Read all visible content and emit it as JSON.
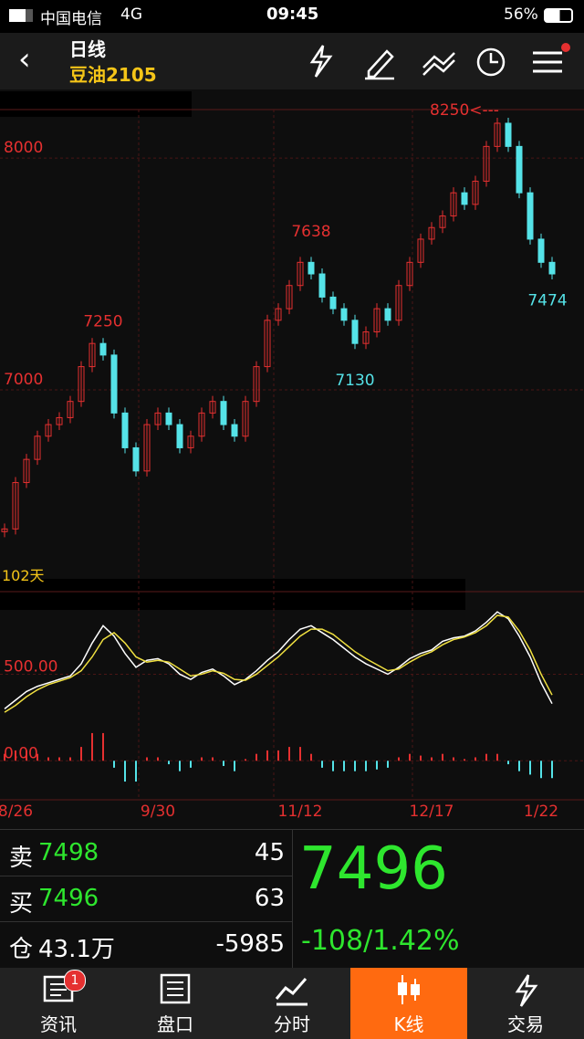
{
  "status_bar": {
    "carrier": "中国电信",
    "network": "4G",
    "time": "09:45",
    "battery": "56%"
  },
  "header": {
    "title": "日线",
    "subtitle": "豆油2105"
  },
  "chart_data": [
    {
      "type": "candlestick",
      "categories": [
        null,
        "8/26",
        null,
        null,
        null,
        null,
        null,
        null,
        null,
        null,
        null,
        null,
        null,
        null,
        "9/30",
        null,
        null,
        null,
        null,
        null,
        null,
        null,
        null,
        null,
        null,
        null,
        null,
        "11/12",
        null,
        null,
        null,
        null,
        null,
        null,
        null,
        null,
        null,
        null,
        null,
        "12/17",
        null,
        null,
        null,
        null,
        null,
        null,
        null,
        null,
        null,
        "1/22",
        null
      ],
      "series": [
        {
          "name": "close",
          "up_color": "#e53030",
          "down_color": "#55e3e8",
          "values": [
            6400,
            6600,
            6700,
            6800,
            6850,
            6880,
            6950,
            7100,
            7200,
            7150,
            6900,
            6750,
            6650,
            6850,
            6900,
            6850,
            6750,
            6800,
            6900,
            6950,
            6850,
            6800,
            6950,
            7100,
            7300,
            7350,
            7450,
            7550,
            7500,
            7400,
            7350,
            7300,
            7200,
            7250,
            7350,
            7300,
            7450,
            7550,
            7650,
            7700,
            7750,
            7850,
            7800,
            7900,
            8050,
            8150,
            8050,
            7850,
            7650,
            7550,
            7500
          ]
        }
      ],
      "ylim": [
        6161,
        8209
      ],
      "yticks": [
        7000,
        8000
      ],
      "grid": true,
      "annotations": [
        {
          "text": "7250",
          "value": 7250,
          "index": 9
        },
        {
          "text": "7638",
          "value": 7638,
          "index": 28
        },
        {
          "text": "7130",
          "value": 7130,
          "index": 32
        },
        {
          "text": "8250<---",
          "value": 8250,
          "index": 42
        },
        {
          "text": "7474",
          "value": 7474,
          "index": 50
        }
      ],
      "note": "102天"
    },
    {
      "type": "macd",
      "series": [
        {
          "name": "DIF",
          "color": "#ffffff",
          "values": [
            300,
            350,
            400,
            430,
            450,
            470,
            490,
            560,
            680,
            780,
            720,
            620,
            540,
            580,
            590,
            560,
            500,
            470,
            510,
            530,
            490,
            440,
            470,
            520,
            580,
            630,
            700,
            760,
            780,
            740,
            700,
            650,
            600,
            560,
            530,
            500,
            540,
            590,
            620,
            640,
            690,
            710,
            720,
            750,
            800,
            860,
            820,
            720,
            600,
            450,
            330
          ]
        },
        {
          "name": "DEA",
          "color": "#f0e040",
          "values": [
            280,
            320,
            370,
            410,
            440,
            460,
            480,
            520,
            600,
            700,
            740,
            680,
            600,
            570,
            580,
            570,
            530,
            490,
            500,
            520,
            505,
            470,
            465,
            500,
            550,
            600,
            660,
            720,
            760,
            760,
            730,
            680,
            630,
            590,
            555,
            520,
            530,
            570,
            605,
            630,
            670,
            700,
            715,
            740,
            780,
            840,
            830,
            750,
            640,
            500,
            380
          ]
        }
      ],
      "histogram": {
        "up_color": "#e53030",
        "down_color": "#55e3e8",
        "values": [
          40,
          60,
          60,
          40,
          20,
          20,
          20,
          80,
          160,
          160,
          -40,
          -120,
          -120,
          20,
          20,
          -20,
          -60,
          -40,
          20,
          20,
          -30,
          -60,
          10,
          40,
          60,
          60,
          80,
          80,
          40,
          -40,
          -60,
          -60,
          -60,
          -60,
          -50,
          -40,
          20,
          40,
          30,
          20,
          40,
          20,
          10,
          20,
          40,
          40,
          -20,
          -60,
          -80,
          -100,
          -100
        ]
      },
      "ylim": [
        -220,
        940
      ],
      "yticks": [
        {
          "value": 0,
          "label": "0.00"
        },
        {
          "value": 500,
          "label": "500.00"
        }
      ]
    }
  ],
  "quote": {
    "sell": {
      "label": "卖",
      "price": "7498",
      "volume": "45"
    },
    "buy": {
      "label": "买",
      "price": "7496",
      "volume": "63"
    },
    "open_interest": {
      "label": "仓",
      "value": "43.1万",
      "change": "-5985"
    },
    "last": "7496",
    "change": "-108/1.42%"
  },
  "tabs": [
    {
      "label": "资讯",
      "badge": "1"
    },
    {
      "label": "盘口"
    },
    {
      "label": "分时"
    },
    {
      "label": "K线",
      "active": true
    },
    {
      "label": "交易"
    }
  ]
}
